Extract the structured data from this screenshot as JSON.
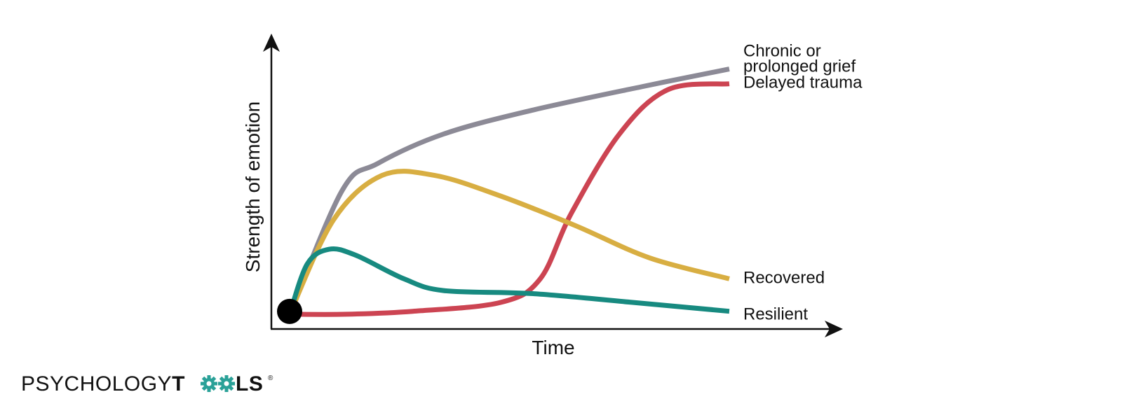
{
  "chart_data": {
    "type": "line",
    "xlabel": "Time",
    "ylabel": "Strength of emotion",
    "axis_ticks": "none",
    "grid": false,
    "legend": "direct labels at line ends",
    "series": [
      {
        "name": "Chronic or prolonged grief",
        "label_lines": [
          "Chronic or",
          "prolonged grief"
        ],
        "color": "#8c8a96",
        "points": [
          [
            0.0,
            0.05
          ],
          [
            0.12,
            0.47
          ],
          [
            0.2,
            0.56
          ],
          [
            0.35,
            0.66
          ],
          [
            0.55,
            0.74
          ],
          [
            0.8,
            0.82
          ],
          [
            1.0,
            0.88
          ]
        ]
      },
      {
        "name": "Delayed trauma",
        "label_lines": [
          "Delayed trauma"
        ],
        "color": "#cc4452",
        "points": [
          [
            0.0,
            0.05
          ],
          [
            0.13,
            0.05
          ],
          [
            0.28,
            0.06
          ],
          [
            0.48,
            0.09
          ],
          [
            0.57,
            0.17
          ],
          [
            0.64,
            0.39
          ],
          [
            0.75,
            0.66
          ],
          [
            0.86,
            0.81
          ],
          [
            1.0,
            0.83
          ]
        ]
      },
      {
        "name": "Recovered",
        "label_lines": [
          "Recovered"
        ],
        "color": "#d8ae42",
        "points": [
          [
            0.0,
            0.05
          ],
          [
            0.1,
            0.37
          ],
          [
            0.21,
            0.52
          ],
          [
            0.33,
            0.52
          ],
          [
            0.48,
            0.45
          ],
          [
            0.65,
            0.35
          ],
          [
            0.82,
            0.24
          ],
          [
            1.0,
            0.17
          ]
        ]
      },
      {
        "name": "Resilient",
        "label_lines": [
          "Resilient"
        ],
        "color": "#178a80",
        "points": [
          [
            0.0,
            0.05
          ],
          [
            0.04,
            0.22
          ],
          [
            0.09,
            0.27
          ],
          [
            0.15,
            0.25
          ],
          [
            0.26,
            0.17
          ],
          [
            0.35,
            0.13
          ],
          [
            0.55,
            0.12
          ],
          [
            0.78,
            0.09
          ],
          [
            1.0,
            0.06
          ]
        ]
      }
    ],
    "start_marker_color": "#000000"
  },
  "logo": {
    "part1": "PSYCHOLOGY",
    "part2": "T",
    "part3": "LS",
    "registered": "®"
  }
}
